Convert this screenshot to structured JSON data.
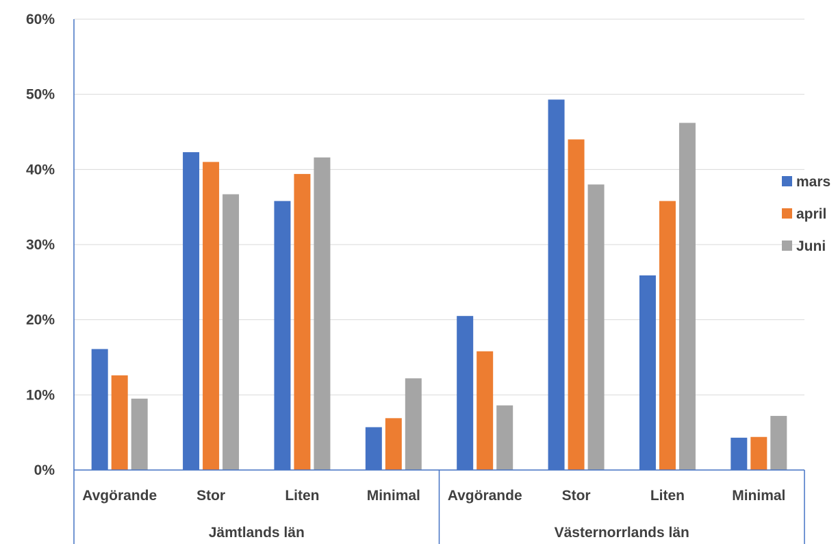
{
  "chart_data": {
    "type": "bar",
    "title": "",
    "xlabel": "",
    "ylabel": "",
    "ylim": [
      0,
      0.6
    ],
    "yticks": [
      0,
      0.1,
      0.2,
      0.3,
      0.4,
      0.5,
      0.6
    ],
    "ytick_labels": [
      "0%",
      "10%",
      "20%",
      "30%",
      "40%",
      "50%",
      "60%"
    ],
    "grid": true,
    "legend_position": "right",
    "groups": [
      {
        "name": "Jämtlands län",
        "categories": [
          "Avgörande",
          "Stor",
          "Liten",
          "Minimal"
        ]
      },
      {
        "name": "Västernorrlands län",
        "categories": [
          "Avgörande",
          "Stor",
          "Liten",
          "Minimal"
        ]
      }
    ],
    "categories": [
      "Avgörande",
      "Stor",
      "Liten",
      "Minimal",
      "Avgörande",
      "Stor",
      "Liten",
      "Minimal"
    ],
    "series": [
      {
        "name": "mars",
        "color": "#4472C4",
        "values": [
          0.161,
          0.423,
          0.358,
          0.057,
          0.205,
          0.493,
          0.259,
          0.043
        ]
      },
      {
        "name": "april",
        "color": "#ED7D31",
        "values": [
          0.126,
          0.41,
          0.394,
          0.069,
          0.158,
          0.44,
          0.358,
          0.044
        ]
      },
      {
        "name": "Juni",
        "color": "#A5A5A5",
        "values": [
          0.095,
          0.367,
          0.416,
          0.122,
          0.086,
          0.38,
          0.462,
          0.072
        ]
      }
    ]
  }
}
